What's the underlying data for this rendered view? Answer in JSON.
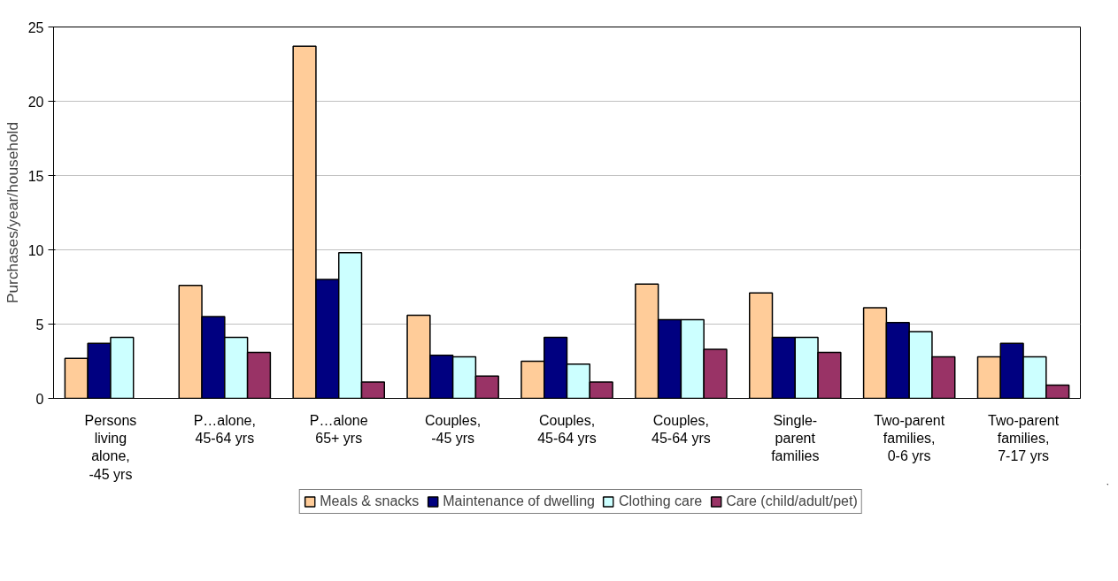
{
  "chart_data": {
    "type": "bar",
    "ylabel": "Purchases/year/household",
    "categories": [
      "Persons\nliving\nalone,\n-45 yrs",
      "P…alone,\n45-64 yrs",
      "P…alone\n65+ yrs",
      "Couples,\n-45 yrs",
      "Couples,\n45-64 yrs",
      "Couples,\n45-64 yrs",
      "Single-\nparent\nfamilies",
      "Two-parent\nfamilies,\n0-6 yrs",
      "Two-parent\nfamilies,\n7-17 yrs"
    ],
    "series": [
      {
        "name": "Meals & snacks",
        "color": "#ffcc99",
        "values": [
          2.7,
          7.6,
          23.7,
          5.6,
          2.5,
          7.7,
          7.1,
          6.1,
          2.8
        ]
      },
      {
        "name": "Maintenance of dwelling",
        "color": "#000080",
        "values": [
          3.7,
          5.5,
          8.0,
          2.9,
          4.1,
          5.3,
          4.1,
          5.1,
          3.7
        ]
      },
      {
        "name": "Clothing care",
        "color": "#ccffff",
        "values": [
          4.1,
          4.1,
          9.8,
          2.8,
          2.3,
          5.3,
          4.1,
          4.5,
          2.8
        ]
      },
      {
        "name": "Care (child/adult/pet)",
        "color": "#993366",
        "values": [
          null,
          3.1,
          1.1,
          1.5,
          1.1,
          3.3,
          3.1,
          2.8,
          0.9
        ]
      }
    ],
    "ylim": [
      0,
      25
    ],
    "yticks": [
      0,
      5,
      10,
      15,
      20,
      25
    ],
    "grid": "y",
    "legend": "bottom"
  }
}
